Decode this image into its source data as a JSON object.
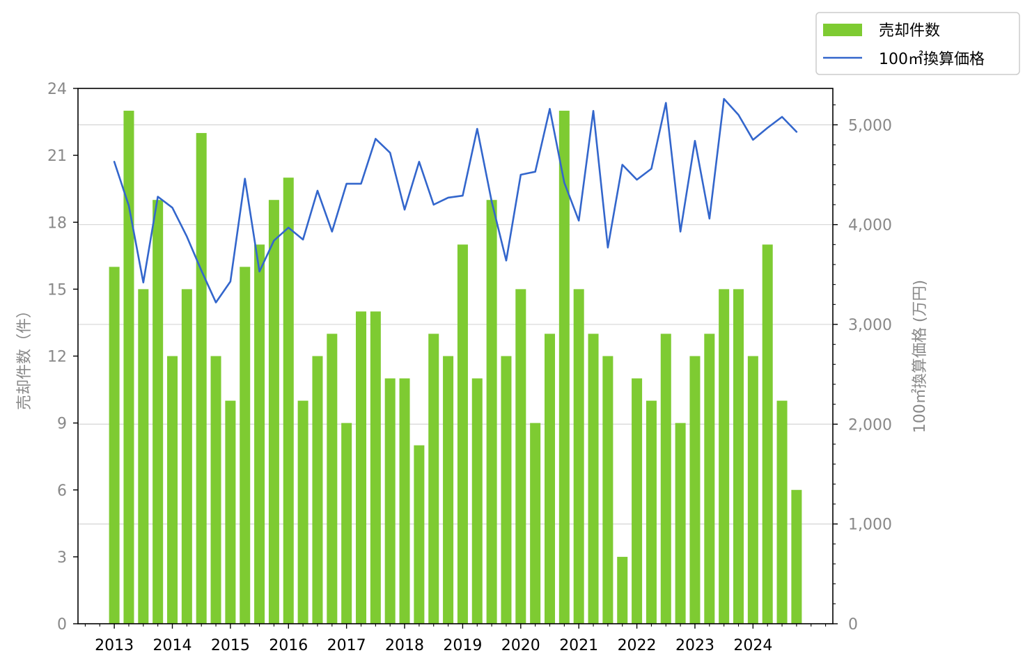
{
  "chart_data": {
    "type": "bar",
    "x_tick_labels": [
      "2013",
      "2014",
      "2015",
      "2016",
      "2017",
      "2018",
      "2019",
      "2020",
      "2021",
      "2022",
      "2023",
      "2024"
    ],
    "y_left_label": "売却件数（件）",
    "y_right_label": "100㎡換算価格 (万円)",
    "y_left_ticks": [
      0,
      3,
      6,
      9,
      12,
      15,
      18,
      21,
      24
    ],
    "y_right_ticks": [
      0,
      1000,
      2000,
      3000,
      4000,
      5000
    ],
    "y_right_tick_labels": [
      "0",
      "1,000",
      "2,000",
      "3,000",
      "4,000",
      "5,000"
    ],
    "ylim_left": [
      0,
      24
    ],
    "ylim_right": [
      0,
      5365
    ],
    "grid": "horizontal, right axis",
    "legend_position": "top-right",
    "series": [
      {
        "name": "売却件数",
        "type": "bar",
        "color": "#7ECB32",
        "x": [
          "2013-Q1",
          "2013-Q2",
          "2013-Q3",
          "2013-Q4",
          "2014-Q1",
          "2014-Q2",
          "2014-Q3",
          "2014-Q4",
          "2015-Q1",
          "2015-Q2",
          "2015-Q3",
          "2015-Q4",
          "2016-Q1",
          "2016-Q2",
          "2016-Q3",
          "2016-Q4",
          "2017-Q1",
          "2017-Q2",
          "2017-Q3",
          "2017-Q4",
          "2018-Q1",
          "2018-Q2",
          "2018-Q3",
          "2018-Q4",
          "2019-Q1",
          "2019-Q2",
          "2019-Q3",
          "2019-Q4",
          "2020-Q1",
          "2020-Q2",
          "2020-Q3",
          "2020-Q4",
          "2021-Q1",
          "2021-Q2",
          "2021-Q3",
          "2021-Q4",
          "2022-Q1",
          "2022-Q2",
          "2022-Q3",
          "2022-Q4",
          "2023-Q1",
          "2023-Q2",
          "2023-Q3",
          "2023-Q4",
          "2024-Q1",
          "2024-Q2",
          "2024-Q3",
          "2024-Q4"
        ],
        "values": [
          16,
          23,
          15,
          19,
          12,
          15,
          22,
          12,
          10,
          16,
          17,
          19,
          20,
          10,
          12,
          13,
          9,
          14,
          14,
          11,
          11,
          8,
          13,
          12,
          17,
          11,
          19,
          12,
          15,
          9,
          13,
          23,
          15,
          13,
          12,
          3,
          11,
          10,
          13,
          9,
          12,
          13,
          15,
          15,
          12,
          17,
          10,
          6
        ]
      },
      {
        "name": "100㎡換算価格",
        "type": "line",
        "color": "#3366CC",
        "axis": "right",
        "x": [
          "2013-Q1",
          "2013-Q2",
          "2013-Q3",
          "2013-Q4",
          "2014-Q1",
          "2014-Q2",
          "2014-Q3",
          "2014-Q4",
          "2015-Q1",
          "2015-Q2",
          "2015-Q3",
          "2015-Q4",
          "2016-Q1",
          "2016-Q2",
          "2016-Q3",
          "2016-Q4",
          "2017-Q1",
          "2017-Q2",
          "2017-Q3",
          "2017-Q4",
          "2018-Q1",
          "2018-Q2",
          "2018-Q3",
          "2018-Q4",
          "2019-Q1",
          "2019-Q2",
          "2019-Q3",
          "2019-Q4",
          "2020-Q1",
          "2020-Q2",
          "2020-Q3",
          "2020-Q4",
          "2021-Q1",
          "2021-Q2",
          "2021-Q3",
          "2021-Q4",
          "2022-Q1",
          "2022-Q2",
          "2022-Q3",
          "2022-Q4",
          "2023-Q1",
          "2023-Q2",
          "2023-Q3",
          "2023-Q4",
          "2024-Q1",
          "2024-Q2",
          "2024-Q3",
          "2024-Q4"
        ],
        "values": [
          4630,
          4190,
          3420,
          4280,
          4170,
          3880,
          3540,
          3220,
          3430,
          4460,
          3530,
          3840,
          3970,
          3850,
          4340,
          3930,
          4410,
          4410,
          4860,
          4720,
          4150,
          4630,
          4200,
          4270,
          4290,
          4960,
          4230,
          3640,
          4500,
          4530,
          5160,
          4420,
          4040,
          5140,
          3770,
          4600,
          4450,
          4560,
          5220,
          3930,
          4840,
          4060,
          5260,
          5100,
          4850,
          4970,
          5080,
          4930
        ]
      }
    ]
  }
}
